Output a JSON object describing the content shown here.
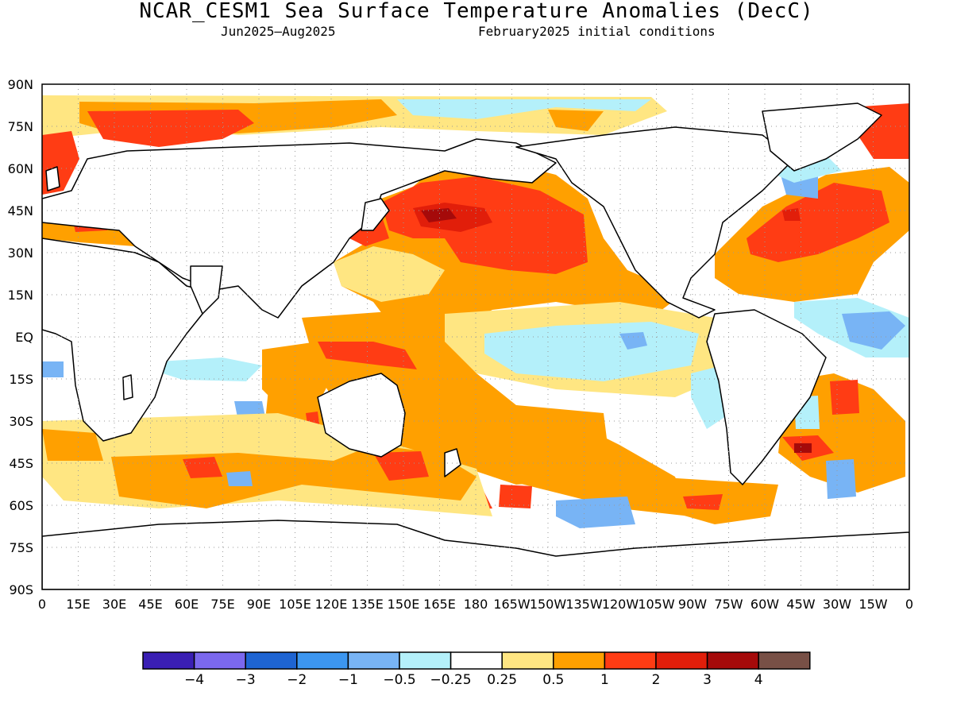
{
  "title": "NCAR_CESM1 Sea Surface Temperature Anomalies (DecC)",
  "subtitle_period": "Jun2025–Aug2025",
  "subtitle_init": "February2025 initial conditions",
  "map": {
    "lat_labels": [
      "90N",
      "75N",
      "60N",
      "45N",
      "30N",
      "15N",
      "EQ",
      "15S",
      "30S",
      "45S",
      "60S",
      "75S",
      "90S"
    ],
    "lon_labels": [
      "0",
      "15E",
      "30E",
      "45E",
      "60E",
      "75E",
      "90E",
      "105E",
      "120E",
      "135E",
      "150E",
      "165E",
      "180",
      "165W",
      "150W",
      "135W",
      "120W",
      "105W",
      "90W",
      "75W",
      "60W",
      "45W",
      "30W",
      "15W",
      "0"
    ]
  },
  "colorbar": {
    "colors": [
      "#3a1fb4",
      "#7b68ee",
      "#1e64d2",
      "#3c96f0",
      "#78b4f5",
      "#b4f0fa",
      "#ffffff",
      "#ffe682",
      "#ffa000",
      "#ff3c14",
      "#e11e0a",
      "#a50a0a",
      "#785046"
    ],
    "labels": [
      "−4",
      "−3",
      "−2",
      "−1",
      "−0.5",
      "−0.25",
      "0.25",
      "0.5",
      "1",
      "2",
      "3",
      "4"
    ]
  }
}
